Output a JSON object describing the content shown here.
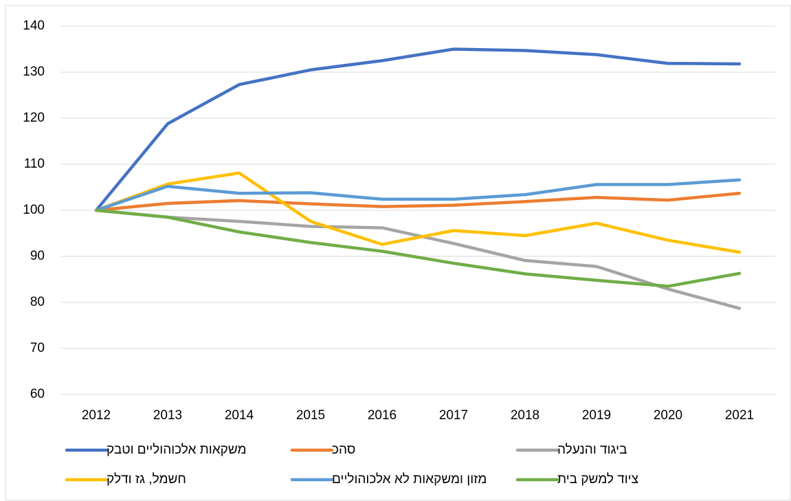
{
  "chart_data": {
    "type": "line",
    "categories": [
      "2012",
      "2013",
      "2014",
      "2015",
      "2016",
      "2017",
      "2018",
      "2019",
      "2020",
      "2021"
    ],
    "series": [
      {
        "name": "משקאות אלכוהוליים וטבק",
        "color": "#4472c4",
        "values": [
          100,
          118.8,
          127.3,
          130.5,
          132.5,
          135,
          134.7,
          133.8,
          131.9,
          131.8
        ]
      },
      {
        "name": "סהכ",
        "color": "#ed7d31",
        "values": [
          100,
          101.5,
          102.1,
          101.4,
          100.8,
          101.1,
          101.9,
          102.8,
          102.2,
          103.7
        ]
      },
      {
        "name": "ביגוד והנעלה",
        "color": "#a5a5a5",
        "values": [
          100,
          98.5,
          97.6,
          96.5,
          96.2,
          92.8,
          89.1,
          87.8,
          82.9,
          78.7
        ]
      },
      {
        "name": "חשמל, גז ודלק",
        "color": "#ffc000",
        "values": [
          100,
          105.7,
          108.1,
          97.6,
          92.6,
          95.6,
          94.5,
          97.2,
          93.5,
          90.9
        ]
      },
      {
        "name": "מזון ומשקאות לא אלכוהוליים",
        "color": "#5b9bd5",
        "values": [
          100,
          105.2,
          103.7,
          103.8,
          102.4,
          102.4,
          103.4,
          105.6,
          105.6,
          106.6
        ]
      },
      {
        "name": "ציוד למשק בית",
        "color": "#70ad47",
        "values": [
          100,
          98.5,
          95.3,
          93,
          91.1,
          88.5,
          86.2,
          84.8,
          83.5,
          86.3
        ]
      }
    ],
    "ylim": [
      60,
      140
    ],
    "yticks": [
      60,
      70,
      80,
      90,
      100,
      110,
      120,
      130,
      140
    ],
    "grid": true
  }
}
